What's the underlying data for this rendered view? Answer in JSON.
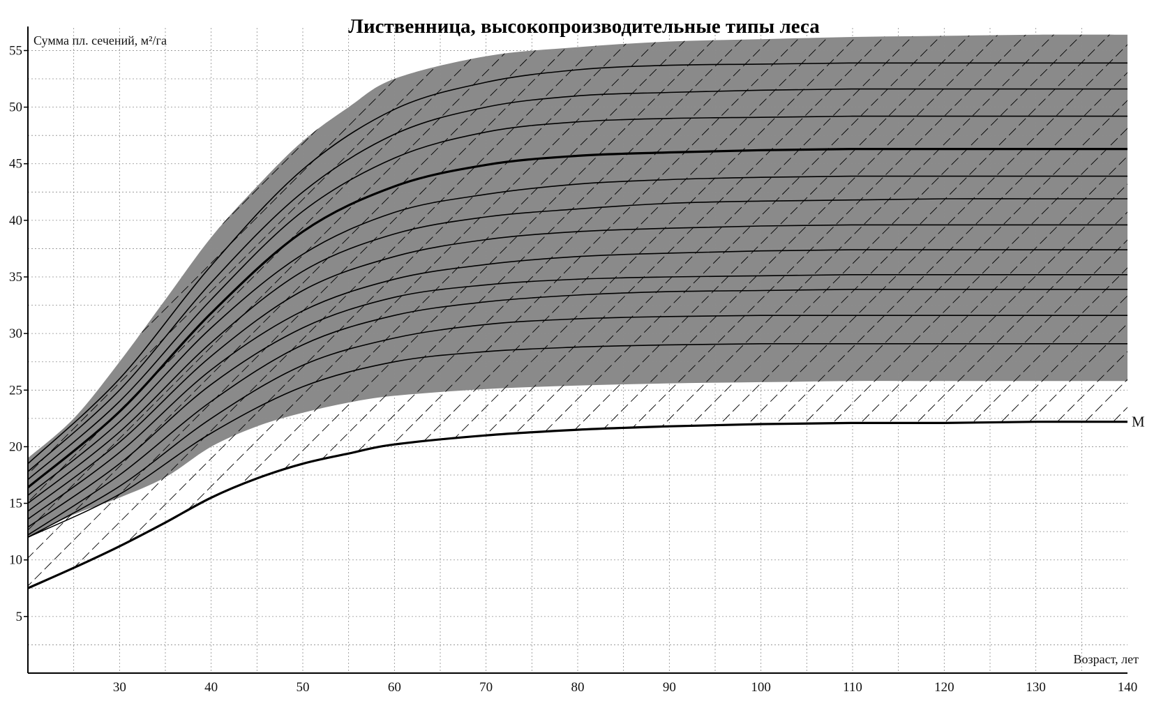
{
  "chart_data": {
    "type": "line",
    "title": "Лиственница, высокопроизводительные типы леса",
    "ylabel": "Сумма пл. сечений, м²/га",
    "xlabel": "Возраст, лет",
    "xlim": [
      20,
      140
    ],
    "ylim": [
      0,
      57
    ],
    "xticks": [
      "30",
      "40",
      "50",
      "60",
      "70",
      "80",
      "90",
      "100",
      "110",
      "120",
      "130",
      "140"
    ],
    "yticks": [
      "5",
      "10",
      "15",
      "20",
      "25",
      "30",
      "35",
      "40",
      "45",
      "50",
      "55"
    ],
    "grid": true,
    "shaded_band": {
      "upper": {
        "x": [
          20,
          25,
          30,
          35,
          40,
          45,
          50,
          55,
          60,
          70,
          80,
          90,
          100,
          110,
          120,
          130,
          140
        ],
        "y": [
          19,
          22.5,
          27.5,
          33,
          38.5,
          43,
          47,
          50,
          52.5,
          54.5,
          55.3,
          55.8,
          56,
          56.2,
          56.3,
          56.4,
          56.4
        ]
      },
      "lower": {
        "x": [
          20,
          25,
          30,
          35,
          40,
          45,
          50,
          55,
          60,
          70,
          80,
          90,
          100,
          110,
          120,
          130,
          140
        ],
        "y": [
          12,
          14,
          15.5,
          17.3,
          20,
          21.8,
          23,
          23.9,
          24.5,
          25.1,
          25.4,
          25.6,
          25.7,
          25.8,
          25.8,
          25.8,
          25.8
        ]
      }
    },
    "series": [
      {
        "x": [
          20,
          30,
          40,
          50,
          60,
          70,
          80,
          90,
          100,
          110,
          120,
          130,
          140
        ],
        "y": [
          18.5,
          26,
          36,
          44.5,
          49.8,
          52.2,
          53.3,
          53.7,
          53.8,
          53.9,
          53.9,
          53.9,
          53.9
        ]
      },
      {
        "x": [
          20,
          30,
          40,
          50,
          60,
          70,
          80,
          90,
          100,
          110,
          120,
          130,
          140
        ],
        "y": [
          17.8,
          25,
          34.5,
          42.5,
          47.6,
          50,
          51,
          51.3,
          51.5,
          51.6,
          51.6,
          51.6,
          51.6
        ]
      },
      {
        "x": [
          20,
          30,
          40,
          50,
          60,
          70,
          80,
          90,
          100,
          110,
          120,
          130,
          140
        ],
        "y": [
          17.1,
          24,
          33,
          40.8,
          45.5,
          47.8,
          48.7,
          49,
          49.1,
          49.2,
          49.2,
          49.2,
          49.2
        ]
      },
      {
        "x": [
          20,
          30,
          40,
          50,
          60,
          70,
          80,
          90,
          100,
          110,
          120,
          130,
          140
        ],
        "y": [
          16.4,
          23.1,
          31.8,
          39,
          43,
          44.9,
          45.7,
          46,
          46.2,
          46.3,
          46.3,
          46.3,
          46.3
        ]
      },
      {
        "x": [
          20,
          30,
          40,
          50,
          60,
          70,
          80,
          90,
          100,
          110,
          120,
          130,
          140
        ],
        "y": [
          15.7,
          22.2,
          30.5,
          37,
          40.7,
          42.3,
          43.2,
          43.6,
          43.8,
          43.9,
          43.9,
          43.9,
          43.9
        ]
      },
      {
        "x": [
          20,
          30,
          40,
          50,
          60,
          70,
          80,
          90,
          100,
          110,
          120,
          130,
          140
        ],
        "y": [
          15,
          21.3,
          29.2,
          35.5,
          38.8,
          40.3,
          41,
          41.5,
          41.7,
          41.8,
          41.9,
          41.9,
          41.9
        ]
      },
      {
        "x": [
          20,
          30,
          40,
          50,
          60,
          70,
          80,
          90,
          100,
          110,
          120,
          130,
          140
        ],
        "y": [
          14.3,
          20.4,
          28,
          33.8,
          36.8,
          38.3,
          39,
          39.3,
          39.5,
          39.6,
          39.6,
          39.6,
          39.6
        ]
      },
      {
        "x": [
          20,
          30,
          40,
          50,
          60,
          70,
          80,
          90,
          100,
          110,
          120,
          130,
          140
        ],
        "y": [
          13.6,
          19.5,
          26.8,
          32,
          34.8,
          36.1,
          36.8,
          37.1,
          37.3,
          37.4,
          37.4,
          37.4,
          37.4
        ]
      },
      {
        "x": [
          20,
          30,
          40,
          50,
          60,
          70,
          80,
          90,
          100,
          110,
          120,
          130,
          140
        ],
        "y": [
          12.9,
          18.5,
          25.5,
          30.5,
          33.2,
          34.3,
          34.8,
          35,
          35.1,
          35.2,
          35.2,
          35.2,
          35.2
        ]
      },
      {
        "x": [
          20,
          30,
          40,
          50,
          60,
          70,
          80,
          90,
          100,
          110,
          120,
          130,
          140
        ],
        "y": [
          12.2,
          17.5,
          24,
          29,
          31.6,
          32.8,
          33.4,
          33.7,
          33.8,
          33.9,
          33.9,
          33.9,
          33.9
        ]
      },
      {
        "x": [
          20,
          30,
          40,
          50,
          60,
          70,
          80,
          90,
          100,
          110,
          120,
          130,
          140
        ],
        "y": [
          12,
          16.5,
          22.5,
          27.2,
          29.6,
          30.8,
          31.3,
          31.5,
          31.6,
          31.6,
          31.6,
          31.6,
          31.6
        ]
      },
      {
        "x": [
          20,
          30,
          40,
          50,
          60,
          70,
          80,
          90,
          100,
          110,
          120,
          130,
          140
        ],
        "y": [
          12,
          15.8,
          21.2,
          25.3,
          27.5,
          28.4,
          28.8,
          29,
          29.1,
          29.1,
          29.1,
          29.1,
          29.1
        ]
      }
    ],
    "bold_series_index": 3,
    "m_series": {
      "name": "M",
      "x": [
        20,
        25,
        30,
        35,
        40,
        45,
        50,
        55,
        60,
        70,
        80,
        90,
        100,
        110,
        120,
        130,
        140
      ],
      "y": [
        7.5,
        9.3,
        11.2,
        13.3,
        15.5,
        17.2,
        18.5,
        19.4,
        20.2,
        21,
        21.5,
        21.8,
        22,
        22.1,
        22.1,
        22.2,
        22.2
      ]
    },
    "colors": {
      "band": "#8a8a8a",
      "lines": "#000000",
      "grid": "#8c8c8c",
      "hatch": "#000000"
    }
  }
}
